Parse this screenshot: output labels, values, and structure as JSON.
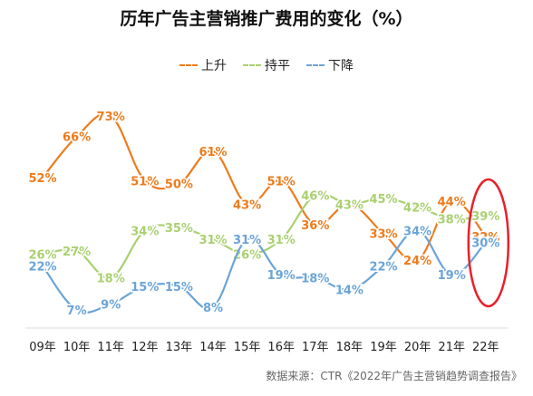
{
  "title": "历年广告主营销推广费用的变化（%）",
  "source": "数据来源：CTR《2022年广告主营销趋势调查报告》",
  "colors": {
    "up": "#EE7B1C",
    "flat": "#A9D070",
    "down": "#6AA4D8",
    "highlight": "#E8202A",
    "axis": "#d9d9d9"
  },
  "chart_data": {
    "type": "line",
    "title": "历年广告主营销推广费用的变化（%）",
    "categories": [
      "09年",
      "10年",
      "11年",
      "12年",
      "13年",
      "14年",
      "15年",
      "16年",
      "17年",
      "18年",
      "19年",
      "20年",
      "21年",
      "22年"
    ],
    "ylim": [
      0,
      80
    ],
    "grid": false,
    "legend_position": "top",
    "series": [
      {
        "name": "上升",
        "color": "#EE7B1C",
        "values": [
          52,
          66,
          73,
          51,
          50,
          61,
          43,
          51,
          36,
          43,
          33,
          24,
          44,
          32
        ]
      },
      {
        "name": "持平",
        "color": "#A9D070",
        "values": [
          26,
          27,
          18,
          34,
          35,
          31,
          26,
          31,
          46,
          43,
          45,
          42,
          38,
          39
        ]
      },
      {
        "name": "下降",
        "color": "#6AA4D8",
        "values": [
          22,
          7,
          9,
          15,
          15,
          8,
          31,
          19,
          18,
          14,
          22,
          34,
          19,
          30
        ]
      }
    ]
  }
}
